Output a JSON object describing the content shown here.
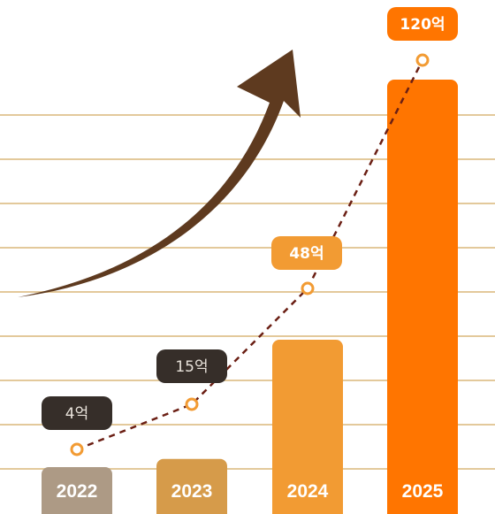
{
  "chart_data": {
    "type": "bar",
    "categories": [
      "2022",
      "2023",
      "2024",
      "2025"
    ],
    "values": [
      4,
      15,
      48,
      120
    ],
    "value_labels": [
      "4억",
      "15억",
      "48억",
      "120억"
    ],
    "title": "",
    "xlabel": "",
    "ylabel": "",
    "grid": true,
    "trend_line": {
      "style": "dashed",
      "color": "#6b1f14",
      "marker": "circle"
    },
    "arrow": {
      "direction": "up-right",
      "color": "#5e3a1f"
    },
    "bar_colors": [
      "#ad9a85",
      "#d69b4a",
      "#f29b33",
      "#ff7500"
    ],
    "badge_colors": [
      "#362e29",
      "#362e29",
      "#f29b33",
      "#ff7500"
    ],
    "badge_text_colors": [
      "#e8e2da",
      "#e8e2da",
      "#ffffff",
      "#ffffff"
    ],
    "gridline_color": "#e3c99b"
  }
}
